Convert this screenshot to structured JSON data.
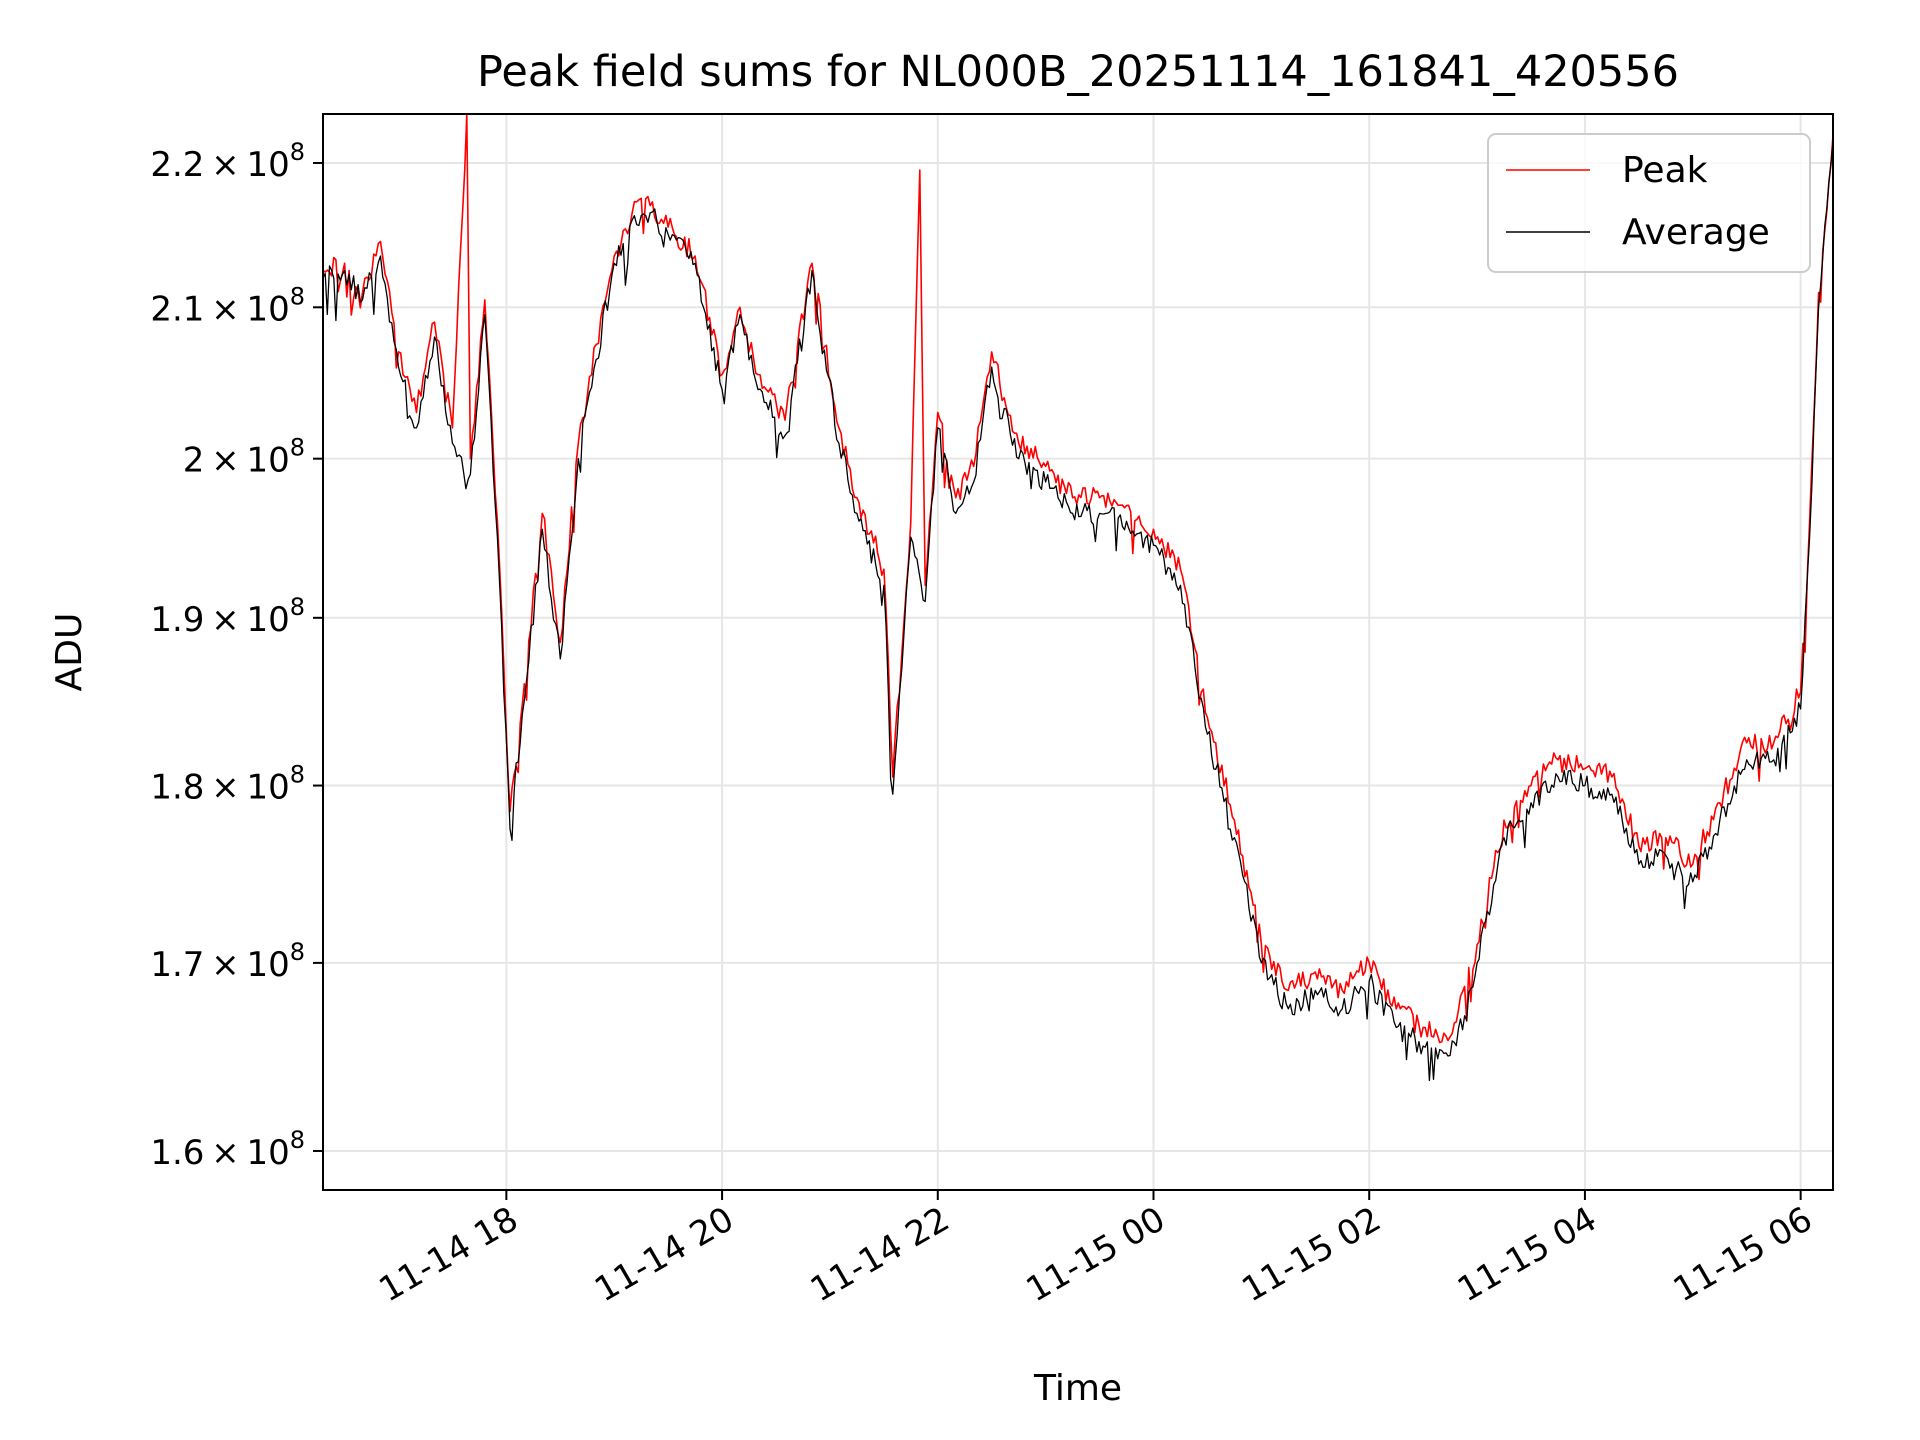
{
  "chart_data": {
    "type": "line",
    "title": "Peak field sums for NL000B_20251114_161841_420556",
    "xlabel": "Time",
    "ylabel": "ADU",
    "yscale": "log",
    "x_range": [
      "2025-11-14T16:18",
      "2025-11-15T06:18"
    ],
    "ylim": [
      158000000,
      223500000
    ],
    "x_ticks": [
      {
        "value": "2025-11-14T18:00",
        "label": "11-14 18"
      },
      {
        "value": "2025-11-14T20:00",
        "label": "11-14 20"
      },
      {
        "value": "2025-11-14T22:00",
        "label": "11-14 22"
      },
      {
        "value": "2025-11-15T00:00",
        "label": "11-15 00"
      },
      {
        "value": "2025-11-15T02:00",
        "label": "11-15 02"
      },
      {
        "value": "2025-11-15T04:00",
        "label": "11-15 04"
      },
      {
        "value": "2025-11-15T06:00",
        "label": "11-15 06"
      }
    ],
    "y_ticks": [
      {
        "value": 160000000,
        "mant": "1.6",
        "exp": "8"
      },
      {
        "value": 170000000,
        "mant": "1.7",
        "exp": "8"
      },
      {
        "value": 180000000,
        "mant": "1.8",
        "exp": "8"
      },
      {
        "value": 190000000,
        "mant": "1.9",
        "exp": "8"
      },
      {
        "value": 200000000,
        "mant": "2",
        "exp": "8"
      },
      {
        "value": 210000000,
        "mant": "2.1",
        "exp": "8"
      },
      {
        "value": 220000000,
        "mant": "2.2",
        "exp": "8"
      }
    ],
    "grid": true,
    "legend_position": "top-right",
    "series": [
      {
        "name": "Peak",
        "color": "#ff0000",
        "points": [
          [
            "2025-11-14T16:18",
            212500000.0
          ],
          [
            "2025-11-14T16:30",
            213000000.0
          ],
          [
            "2025-11-14T16:40",
            211000000.0
          ],
          [
            "2025-11-14T16:50",
            214500000.0
          ],
          [
            "2025-11-14T17:00",
            207000000.0
          ],
          [
            "2025-11-14T17:10",
            203000000.0
          ],
          [
            "2025-11-14T17:20",
            209000000.0
          ],
          [
            "2025-11-14T17:30",
            202000000.0
          ],
          [
            "2025-11-14T17:38",
            223500000.0
          ],
          [
            "2025-11-14T17:40",
            200000000.0
          ],
          [
            "2025-11-14T17:48",
            210500000.0
          ],
          [
            "2025-11-14T17:55",
            196000000.0
          ],
          [
            "2025-11-14T18:02",
            178500000.0
          ],
          [
            "2025-11-14T18:10",
            186000000.0
          ],
          [
            "2025-11-14T18:20",
            196500000.0
          ],
          [
            "2025-11-14T18:30",
            188500000.0
          ],
          [
            "2025-11-14T18:40",
            201000000.0
          ],
          [
            "2025-11-14T18:50",
            207500000.0
          ],
          [
            "2025-11-14T19:00",
            213500000.0
          ],
          [
            "2025-11-14T19:10",
            216500000.0
          ],
          [
            "2025-11-14T19:20",
            217000000.0
          ],
          [
            "2025-11-14T19:30",
            215500000.0
          ],
          [
            "2025-11-14T19:45",
            213500000.0
          ],
          [
            "2025-11-14T20:00",
            205500000.0
          ],
          [
            "2025-11-14T20:10",
            210000000.0
          ],
          [
            "2025-11-14T20:20",
            205500000.0
          ],
          [
            "2025-11-14T20:35",
            202500000.0
          ],
          [
            "2025-11-14T20:50",
            213000000.0
          ],
          [
            "2025-11-14T21:05",
            202000000.0
          ],
          [
            "2025-11-14T21:15",
            197500000.0
          ],
          [
            "2025-11-14T21:30",
            193000000.0
          ],
          [
            "2025-11-14T21:35",
            180500000.0
          ],
          [
            "2025-11-14T21:45",
            196000000.0
          ],
          [
            "2025-11-14T21:50",
            219500000.0
          ],
          [
            "2025-11-14T21:53",
            192000000.0
          ],
          [
            "2025-11-14T22:00",
            203000000.0
          ],
          [
            "2025-11-14T22:10",
            197500000.0
          ],
          [
            "2025-11-14T22:20",
            199500000.0
          ],
          [
            "2025-11-14T22:30",
            207000000.0
          ],
          [
            "2025-11-14T22:45",
            201000000.0
          ],
          [
            "2025-11-14T23:00",
            199500000.0
          ],
          [
            "2025-11-14T23:15",
            197500000.0
          ],
          [
            "2025-11-14T23:30",
            197500000.0
          ],
          [
            "2025-11-14T23:45",
            197000000.0
          ],
          [
            "2025-11-15T00:00",
            195500000.0
          ],
          [
            "2025-11-15T00:15",
            193000000.0
          ],
          [
            "2025-11-15T00:30",
            184000000.0
          ],
          [
            "2025-11-15T00:45",
            178000000.0
          ],
          [
            "2025-11-15T01:00",
            171000000.0
          ],
          [
            "2025-11-15T01:15",
            168500000.0
          ],
          [
            "2025-11-15T01:30",
            169500000.0
          ],
          [
            "2025-11-15T01:45",
            168500000.0
          ],
          [
            "2025-11-15T02:00",
            170000000.0
          ],
          [
            "2025-11-15T02:15",
            167500000.0
          ],
          [
            "2025-11-15T02:30",
            166500000.0
          ],
          [
            "2025-11-15T02:45",
            166000000.0
          ],
          [
            "2025-11-15T03:00",
            171000000.0
          ],
          [
            "2025-11-15T03:15",
            178000000.0
          ],
          [
            "2025-11-15T03:30",
            180000000.0
          ],
          [
            "2025-11-15T03:45",
            181500000.0
          ],
          [
            "2025-11-15T04:00",
            181000000.0
          ],
          [
            "2025-11-15T04:15",
            180500000.0
          ],
          [
            "2025-11-15T04:30",
            176500000.0
          ],
          [
            "2025-11-15T04:45",
            177000000.0
          ],
          [
            "2025-11-15T05:00",
            175500000.0
          ],
          [
            "2025-11-15T05:15",
            179000000.0
          ],
          [
            "2025-11-15T05:30",
            182500000.0
          ],
          [
            "2025-11-15T05:45",
            182500000.0
          ],
          [
            "2025-11-15T06:00",
            185500000.0
          ],
          [
            "2025-11-15T06:05",
            196000000.0
          ],
          [
            "2025-11-15T06:10",
            211000000.0
          ],
          [
            "2025-11-15T06:18",
            222000000.0
          ]
        ]
      },
      {
        "name": "Average",
        "color": "#000000",
        "points": [
          [
            "2025-11-14T16:18",
            212000000.0
          ],
          [
            "2025-11-14T16:30",
            212500000.0
          ],
          [
            "2025-11-14T16:40",
            210500000.0
          ],
          [
            "2025-11-14T16:50",
            213500000.0
          ],
          [
            "2025-11-14T17:00",
            206000000.0
          ],
          [
            "2025-11-14T17:10",
            202000000.0
          ],
          [
            "2025-11-14T17:20",
            208000000.0
          ],
          [
            "2025-11-14T17:30",
            201000000.0
          ],
          [
            "2025-11-14T17:40",
            199000000.0
          ],
          [
            "2025-11-14T17:48",
            209500000.0
          ],
          [
            "2025-11-14T17:55",
            195000000.0
          ],
          [
            "2025-11-14T18:02",
            177500000.0
          ],
          [
            "2025-11-14T18:10",
            185000000.0
          ],
          [
            "2025-11-14T18:20",
            195500000.0
          ],
          [
            "2025-11-14T18:30",
            187500000.0
          ],
          [
            "2025-11-14T18:40",
            200000000.0
          ],
          [
            "2025-11-14T18:50",
            206500000.0
          ],
          [
            "2025-11-14T19:00",
            213000000.0
          ],
          [
            "2025-11-14T19:10",
            216000000.0
          ],
          [
            "2025-11-14T19:20",
            216500000.0
          ],
          [
            "2025-11-14T19:30",
            215000000.0
          ],
          [
            "2025-11-14T19:45",
            213000000.0
          ],
          [
            "2025-11-14T20:00",
            204500000.0
          ],
          [
            "2025-11-14T20:10",
            209500000.0
          ],
          [
            "2025-11-14T20:20",
            204500000.0
          ],
          [
            "2025-11-14T20:35",
            201500000.0
          ],
          [
            "2025-11-14T20:50",
            212500000.0
          ],
          [
            "2025-11-14T21:05",
            201000000.0
          ],
          [
            "2025-11-14T21:15",
            196500000.0
          ],
          [
            "2025-11-14T21:30",
            192000000.0
          ],
          [
            "2025-11-14T21:35",
            179500000.0
          ],
          [
            "2025-11-14T21:45",
            195000000.0
          ],
          [
            "2025-11-14T21:53",
            191000000.0
          ],
          [
            "2025-11-14T22:00",
            202000000.0
          ],
          [
            "2025-11-14T22:10",
            196500000.0
          ],
          [
            "2025-11-14T22:20",
            198500000.0
          ],
          [
            "2025-11-14T22:30",
            206000000.0
          ],
          [
            "2025-11-14T22:45",
            200000000.0
          ],
          [
            "2025-11-14T23:00",
            198500000.0
          ],
          [
            "2025-11-14T23:15",
            196500000.0
          ],
          [
            "2025-11-14T23:30",
            196500000.0
          ],
          [
            "2025-11-14T23:45",
            196000000.0
          ],
          [
            "2025-11-15T00:00",
            194500000.0
          ],
          [
            "2025-11-15T00:15",
            192000000.0
          ],
          [
            "2025-11-15T00:30",
            183000000.0
          ],
          [
            "2025-11-15T00:45",
            177000000.0
          ],
          [
            "2025-11-15T01:00",
            170000000.0
          ],
          [
            "2025-11-15T01:15",
            167500000.0
          ],
          [
            "2025-11-15T01:30",
            168500000.0
          ],
          [
            "2025-11-15T01:45",
            167500000.0
          ],
          [
            "2025-11-15T02:00",
            169000000.0
          ],
          [
            "2025-11-15T02:15",
            166500000.0
          ],
          [
            "2025-11-15T02:30",
            165500000.0
          ],
          [
            "2025-11-15T02:45",
            165000000.0
          ],
          [
            "2025-11-15T03:00",
            170000000.0
          ],
          [
            "2025-11-15T03:15",
            177000000.0
          ],
          [
            "2025-11-15T03:30",
            179000000.0
          ],
          [
            "2025-11-15T03:45",
            180500000.0
          ],
          [
            "2025-11-15T04:00",
            180000000.0
          ],
          [
            "2025-11-15T04:15",
            179500000.0
          ],
          [
            "2025-11-15T04:30",
            175500000.0
          ],
          [
            "2025-11-15T04:45",
            176000000.0
          ],
          [
            "2025-11-15T05:00",
            174500000.0
          ],
          [
            "2025-11-15T05:15",
            178000000.0
          ],
          [
            "2025-11-15T05:30",
            181500000.0
          ],
          [
            "2025-11-15T05:45",
            181500000.0
          ],
          [
            "2025-11-15T06:00",
            184500000.0
          ],
          [
            "2025-11-15T06:05",
            195000000.0
          ],
          [
            "2025-11-15T06:10",
            210000000.0
          ],
          [
            "2025-11-15T06:18",
            221500000.0
          ]
        ]
      }
    ]
  }
}
